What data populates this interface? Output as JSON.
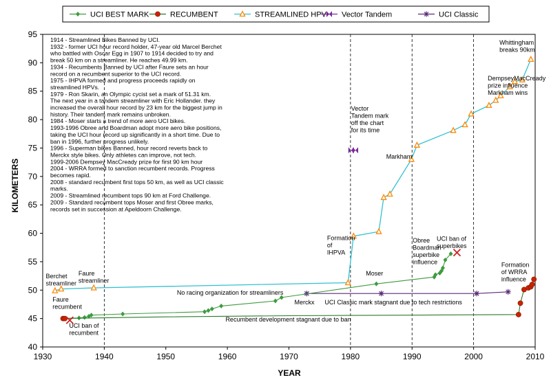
{
  "chart_data": {
    "type": "line",
    "xlabel": "YEAR",
    "ylabel": "KILOMETERS",
    "xlim": [
      1930,
      2010
    ],
    "ylim": [
      40,
      95
    ],
    "xticks": [
      1930,
      1940,
      1950,
      1960,
      1970,
      1980,
      1990,
      2000,
      2010
    ],
    "yticks": [
      40,
      45,
      50,
      55,
      60,
      65,
      70,
      75,
      80,
      85,
      90,
      95
    ],
    "grid": "dashed at 1940, 1980, 1990, 2000",
    "legend": "top",
    "series": [
      {
        "name": "UCI BEST MARK",
        "color": "#3f9a3f",
        "line_color": "#3f9a3f",
        "marker": "diamond",
        "points": [
          [
            1933.3,
            45.0
          ],
          [
            1935.9,
            45.1
          ],
          [
            1936.8,
            45.2
          ],
          [
            1937.5,
            45.4
          ],
          [
            1937.9,
            45.6
          ],
          [
            1943.0,
            45.8
          ],
          [
            1956.3,
            46.2
          ],
          [
            1956.9,
            46.4
          ],
          [
            1957.5,
            46.7
          ],
          [
            1959.0,
            47.2
          ],
          [
            1967.8,
            48.1
          ],
          [
            1968.8,
            48.7
          ],
          [
            1984.2,
            51.1
          ],
          [
            1993.6,
            52.3
          ],
          [
            1993.8,
            52.7
          ],
          [
            1994.5,
            53.0
          ],
          [
            1994.8,
            53.4
          ],
          [
            1995.0,
            53.9
          ],
          [
            1995.4,
            55.3
          ],
          [
            1996.3,
            56.4
          ]
        ]
      },
      {
        "name": "RECUMBENT",
        "color": "#cc2200",
        "line_color": "#2a7a2a",
        "marker": "circle",
        "points": [
          [
            1933.3,
            45.0
          ],
          [
            1933.6,
            45.0
          ],
          [
            1938.0,
            45.1
          ],
          [
            1950.0,
            45.3
          ],
          [
            1970.0,
            45.5
          ],
          [
            1990.0,
            45.6
          ],
          [
            2007.3,
            45.7
          ],
          [
            2007.6,
            47.7
          ],
          [
            2008.2,
            50.1
          ],
          [
            2008.9,
            50.4
          ],
          [
            2009.3,
            50.6
          ],
          [
            2009.5,
            51.0
          ],
          [
            2009.8,
            51.9
          ]
        ]
      },
      {
        "name": "STREAMLINED  HPV",
        "color": "#ff8800",
        "line_color": "#33c0d0",
        "marker": "triangle",
        "points": [
          [
            1932.0,
            49.9
          ],
          [
            1933.0,
            50.2
          ],
          [
            1938.3,
            50.4
          ],
          [
            1979.6,
            51.3
          ],
          [
            1980.5,
            59.5
          ],
          [
            1984.6,
            60.3
          ],
          [
            1985.4,
            66.3
          ],
          [
            1986.4,
            66.9
          ],
          [
            1989.9,
            73.0
          ],
          [
            1990.8,
            75.5
          ],
          [
            1996.7,
            78.1
          ],
          [
            1998.6,
            79.1
          ],
          [
            1999.6,
            81.0
          ],
          [
            2002.5,
            82.5
          ],
          [
            2003.6,
            83.4
          ],
          [
            2004.4,
            84.2
          ],
          [
            2005.9,
            85.8
          ],
          [
            2006.7,
            86.7
          ],
          [
            2007.9,
            87.0
          ],
          [
            2009.3,
            90.6
          ]
        ]
      },
      {
        "name": "Vector Tandem",
        "color": "#7a2a9a",
        "line_color": "#7a2a9a",
        "marker": "bowtie",
        "points": [
          [
            1980.1,
            74.6
          ],
          [
            1980.8,
            74.6
          ]
        ]
      },
      {
        "name": "UCI Classic",
        "color": "#5a2a7a",
        "line_color": "#5a2a7a",
        "marker": "asterisk",
        "points": [
          [
            1972.9,
            49.4
          ],
          [
            1985.0,
            49.4
          ],
          [
            2000.5,
            49.4
          ],
          [
            2005.6,
            49.7
          ]
        ]
      }
    ],
    "special_markers": [
      {
        "x": 1934.4,
        "y": 44.7,
        "marker": "x",
        "color": "#cc2222"
      },
      {
        "x": 1997.3,
        "y": 56.6,
        "marker": "x",
        "color": "#cc2222"
      }
    ],
    "annotations": [
      {
        "id": "berchet",
        "lines": [
          "Berchet",
          "streamliner"
        ],
        "x": 1930.5,
        "y": 52.1
      },
      {
        "id": "faure-streamliner",
        "lines": [
          "Faure",
          "streamliner"
        ],
        "x": 1935.8,
        "y": 52.6
      },
      {
        "id": "faure-recumbent",
        "lines": [
          "Faure",
          "recumbent"
        ],
        "x": 1931.6,
        "y": 48.0
      },
      {
        "id": "uci-ban-recumbent",
        "lines": [
          "UCI ban of",
          "recumbent"
        ],
        "x": 1934.3,
        "y": 43.4
      },
      {
        "id": "no-racing",
        "lines": [
          "No racing organization for streamliners"
        ],
        "x": 1951.8,
        "y": 49.2
      },
      {
        "id": "recumbent-stagnant",
        "lines": [
          "Recumbent development stagnant due to ban"
        ],
        "x": 1959.7,
        "y": 44.5
      },
      {
        "id": "merckx",
        "lines": [
          "Merckx"
        ],
        "x": 1970.9,
        "y": 47.5
      },
      {
        "id": "uci-classic-stagnant",
        "lines": [
          "UCI Classic mark stagnant due to tech restrictions"
        ],
        "x": 1975.8,
        "y": 47.5
      },
      {
        "id": "formation-ihpva",
        "lines": [
          "Formation",
          "of",
          "IHPVA"
        ],
        "x": 1976.2,
        "y": 58.8
      },
      {
        "id": "moser",
        "lines": [
          "Moser"
        ],
        "x": 1982.5,
        "y": 52.6
      },
      {
        "id": "vector-offchart",
        "lines": [
          "Vector",
          "Tandem mark",
          "off the chart",
          "for its time"
        ],
        "x": 1980.1,
        "y": 81.6
      },
      {
        "id": "markham",
        "lines": [
          "Markham"
        ],
        "x": 1985.8,
        "y": 73.1
      },
      {
        "id": "obree-boardman",
        "lines": [
          "Obree",
          "Boardman",
          "superbike",
          "influence"
        ],
        "x": 1990.1,
        "y": 58.4
      },
      {
        "id": "uci-ban-superbikes",
        "lines": [
          "UCI ban of",
          "superbikes"
        ],
        "x": 1994.0,
        "y": 58.7
      },
      {
        "id": "dempsey",
        "lines": [
          "DempseyMacCready",
          "prize influence",
          "Markham wins"
        ],
        "x": 2002.3,
        "y": 86.9
      },
      {
        "id": "whittingham",
        "lines": [
          "Whittingham",
          "breaks 90km"
        ],
        "x": 2004.2,
        "y": 93.2
      },
      {
        "id": "formation-wrra",
        "lines": [
          "Formation",
          "of WRRA",
          "influence"
        ],
        "x": 2004.5,
        "y": 54.1
      }
    ],
    "notes": [
      "1914 - Streamlined Bikes Banned by UCI.",
      "1932 - former UCI hour record holder, 47-year old Marcel Berchet",
      "who battled with Oscar Egg in 1907 to 1914 decided to try and",
      "break 50 km on a streamliner. He reaches 49.99 km.",
      "1934 - Recumbents Banned by UCI after Faure sets an hour",
      "record on a recumbent superior to the UCI record.",
      "1975 - IHPVA formed and progress proceeds rapidly on",
      "streamlined HPVs.",
      "1979 - Ron Skarin, an Olympic cycist set a mark of 51.31 km.",
      "The next year in a tandem streamliner with Eric Hollander. they",
      "increased the overall hour record by 23 km for the biggest jump in",
      "history. Their tandem mark remains unbroken.",
      "1984 - Moser starts a trend of more aero UCI bikes.",
      "1993-1996 Obree and Boardman adopt more aero bike positions,",
      "taking the UCI hour record up significantly in a short time.  Due to",
      "ban in 1996, further progress unlikely.",
      "1996 - Superman bikes Banned, hour record reverts back to",
      "Merckx style bikes. Only athletes can improve, not tech.",
      "1999-2006 Dempsey MacCready prize for first 90 km hour",
      "2004 - WRRA formed to sanction recumbent records.  Progress",
      "becomes rapid.",
      "2008 - standard recumbent first tops 50 km, as well as UCI classic",
      "marks.",
      "2009 - Streamlined recumbent tops 90 km at Ford Challenge.",
      "2009 - Standard recumbent tops Moser and first Obree marks,",
      "records set in succession at Apeldoorn Challenge."
    ]
  }
}
